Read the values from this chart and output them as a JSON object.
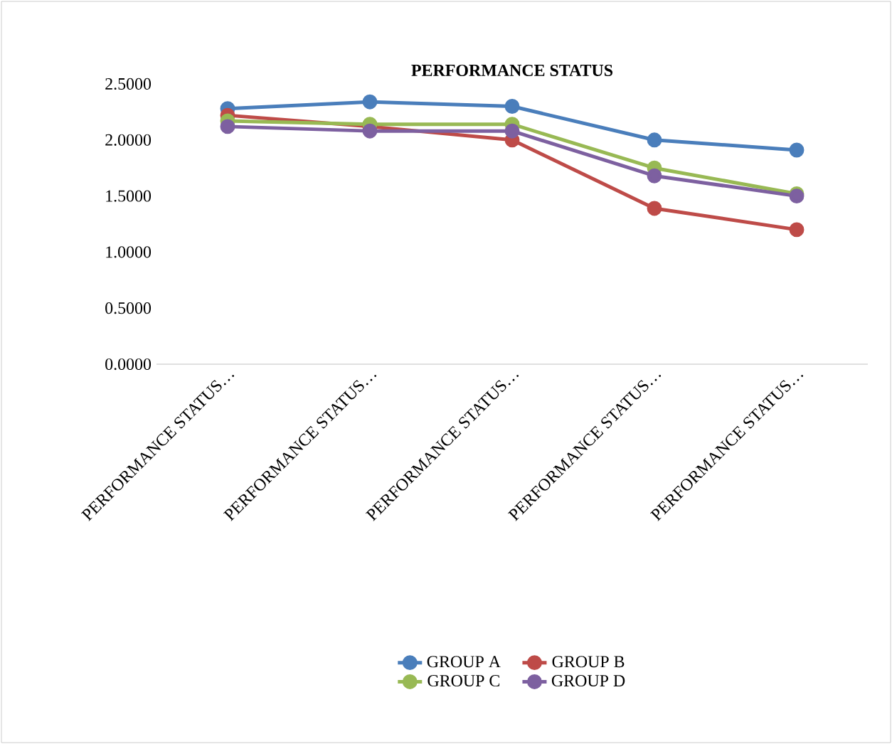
{
  "chart_data": {
    "type": "line",
    "title": "PERFORMANCE STATUS",
    "categories": [
      "PERFORMANCE STATUS…",
      "PERFORMANCE STATUS…",
      "PERFORMANCE STATUS…",
      "PERFORMANCE STATUS…",
      "PERFORMANCE STATUS…"
    ],
    "series": [
      {
        "name": "GROUP A",
        "color": "#4a7ebb",
        "values": [
          2.28,
          2.34,
          2.3,
          2.0,
          1.91
        ]
      },
      {
        "name": "GROUP B",
        "color": "#be4b48",
        "values": [
          2.22,
          2.12,
          2.0,
          1.39,
          1.2
        ]
      },
      {
        "name": "GROUP C",
        "color": "#98b954",
        "values": [
          2.17,
          2.14,
          2.14,
          1.75,
          1.52
        ]
      },
      {
        "name": "GROUP D",
        "color": "#7d60a0",
        "values": [
          2.12,
          2.08,
          2.08,
          1.68,
          1.5
        ]
      }
    ],
    "ylim": [
      0,
      2.5
    ],
    "yticks": [
      {
        "value": 0,
        "label": "0.0000"
      },
      {
        "value": 0.5,
        "label": "0.5000"
      },
      {
        "value": 1,
        "label": "1.0000"
      },
      {
        "value": 1.5,
        "label": "1.5000"
      },
      {
        "value": 2,
        "label": "2.0000"
      },
      {
        "value": 2.5,
        "label": "2.5000"
      }
    ],
    "marker": "circle",
    "line_style": "solid",
    "legend": "bottom",
    "grid": false
  }
}
